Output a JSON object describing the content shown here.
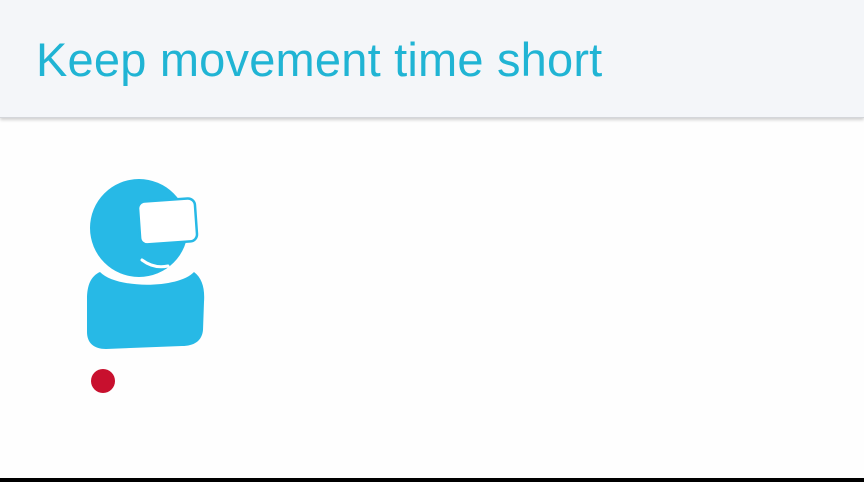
{
  "slide": {
    "title": "Keep movement time short"
  },
  "colors": {
    "title_text": "#20b4d4",
    "header_background": "#f4f6f9",
    "figure_blue": "#27b9e6",
    "dot_red": "#c8102e",
    "headset_fill": "#ffffff"
  },
  "icons": {
    "figure": "vr-user-icon",
    "marker": "target-dot-icon"
  }
}
